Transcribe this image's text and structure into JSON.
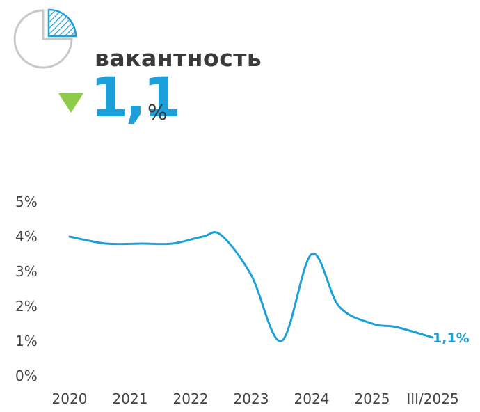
{
  "header": {
    "icon": "pie-chart-icon",
    "title": "вакантность",
    "trend_icon": "triangle-down-icon",
    "value": "1,1",
    "unit": "%"
  },
  "colors": {
    "accent": "#1ca0db",
    "trend_down": "#8ccc4a",
    "text": "#3a3a3a",
    "icon_gray": "#c8c8c8"
  },
  "chart_data": {
    "type": "line",
    "categories": [
      "2020",
      "2021",
      "2022",
      "2023",
      "2024",
      "2025",
      "III/2025"
    ],
    "yticks": [
      "0%",
      "1%",
      "2%",
      "3%",
      "4%",
      "5%"
    ],
    "ylim": [
      0,
      5
    ],
    "grid": false,
    "series": [
      {
        "x": [
          0,
          0.6,
          1.2,
          1.7,
          2.2,
          2.5,
          3.0,
          3.5,
          4.0,
          4.45,
          5.0,
          5.4,
          6.0
        ],
        "values": [
          4.0,
          3.8,
          3.8,
          3.8,
          4.0,
          4.05,
          2.9,
          1.0,
          3.5,
          2.0,
          1.5,
          1.4,
          1.1
        ],
        "color": "#1ca0db"
      }
    ],
    "end_label": "1,1%"
  }
}
